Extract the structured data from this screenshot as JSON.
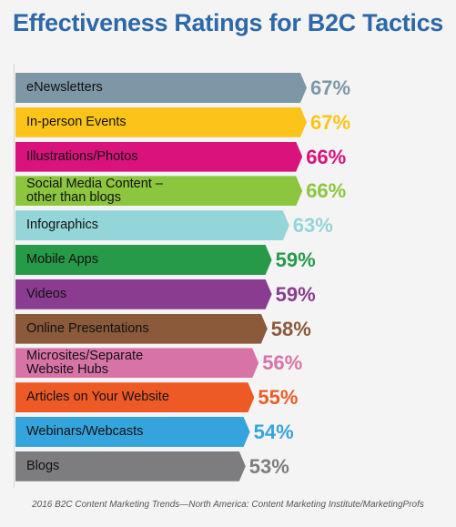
{
  "chart_data": {
    "type": "bar",
    "orientation": "horizontal",
    "title": "Effectiveness Ratings for B2C Tactics",
    "categories": [
      "eNewsletters",
      "In-person Events",
      "Illustrations/Photos",
      "Social Media Content –\nother than blogs",
      "Infographics",
      "Mobile Apps",
      "Videos",
      "Online Presentations",
      "Microsites/Separate\nWebsite Hubs",
      "Articles on Your Website",
      "Webinars/Webcasts",
      "Blogs"
    ],
    "values": [
      67,
      67,
      66,
      66,
      63,
      59,
      59,
      58,
      56,
      55,
      54,
      53
    ],
    "value_labels": [
      "67%",
      "67%",
      "66%",
      "66%",
      "63%",
      "59%",
      "59%",
      "58%",
      "56%",
      "55%",
      "54%",
      "53%"
    ],
    "colors": [
      "#7d97a6",
      "#fcc418",
      "#d9127c",
      "#8cc63f",
      "#93d5d8",
      "#279a4a",
      "#8a3c90",
      "#8a5a3a",
      "#d873a8",
      "#ee5a26",
      "#36a4dc",
      "#7d7d80"
    ],
    "value_unit": "%",
    "xlim": [
      0,
      100
    ]
  },
  "footer": "2016 B2C Content Marketing Trends—North America: Content Marketing Institute/MarketingProfs"
}
